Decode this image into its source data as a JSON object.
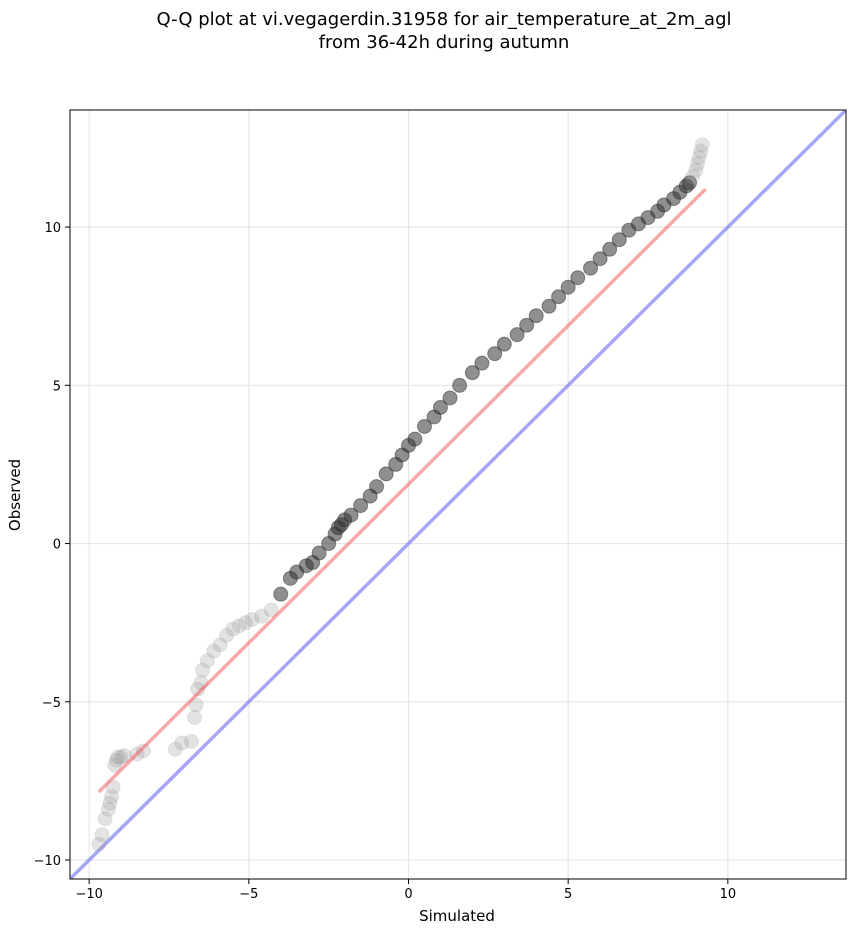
{
  "chart_data": {
    "type": "scatter",
    "title_lines": [
      "Q-Q plot at vi.vegagerdin.31958 for air_temperature_at_2m_agl",
      "from 36-42h during autumn"
    ],
    "xlabel": "Simulated",
    "ylabel": "Observed",
    "xlim": [
      -10.6,
      13.7
    ],
    "ylim": [
      -10.6,
      13.7
    ],
    "xticks": [
      -10,
      -5,
      0,
      5,
      10
    ],
    "yticks": [
      -10,
      -5,
      0,
      5,
      10
    ],
    "xtick_labels": [
      "−10",
      "−5",
      "0",
      "5",
      "10"
    ],
    "ytick_labels": [
      "−10",
      "−5",
      "0",
      "5",
      "10"
    ],
    "grid": true,
    "colors": {
      "points": "#333333",
      "fit_line": "#ef5350",
      "reference_line": "#6b6bf0",
      "grid": "#e6e6e6"
    },
    "series": [
      {
        "kind": "quantiles",
        "x": [
          -9.7,
          -9.6,
          -9.5,
          -9.4,
          -9.35,
          -9.3,
          -9.25,
          -9.2,
          -9.15,
          -9.1,
          -9.0,
          -8.9,
          -8.5,
          -8.3,
          -7.3,
          -7.1,
          -6.8,
          -6.7,
          -6.65,
          -6.6,
          -6.5,
          -6.45,
          -6.3,
          -6.1,
          -5.9,
          -5.7,
          -5.5,
          -5.3,
          -5.1,
          -4.9,
          -4.6,
          -4.3,
          -4.0,
          -3.7,
          -3.5,
          -3.2,
          -3.0,
          -2.8,
          -2.5,
          -2.3,
          -2.2,
          -2.1,
          -2.0,
          -1.8,
          -1.5,
          -1.2,
          -1.0,
          -0.7,
          -0.4,
          -0.2,
          0.0,
          0.2,
          0.5,
          0.8,
          1.0,
          1.3,
          1.6,
          2.0,
          2.3,
          2.7,
          3.0,
          3.4,
          3.7,
          4.0,
          4.4,
          4.7,
          5.0,
          5.3,
          5.7,
          6.0,
          6.3,
          6.6,
          6.9,
          7.2,
          7.5,
          7.8,
          8.0,
          8.3,
          8.5,
          8.7,
          8.8,
          8.9,
          9.0,
          9.05,
          9.1,
          9.15,
          9.2
        ],
        "y": [
          -9.5,
          -9.2,
          -8.7,
          -8.4,
          -8.2,
          -8.0,
          -7.7,
          -7.0,
          -6.85,
          -6.75,
          -6.75,
          -6.7,
          -6.65,
          -6.55,
          -6.5,
          -6.3,
          -6.25,
          -5.5,
          -5.1,
          -4.6,
          -4.4,
          -4.0,
          -3.7,
          -3.4,
          -3.2,
          -2.9,
          -2.7,
          -2.6,
          -2.5,
          -2.4,
          -2.3,
          -2.1,
          -1.6,
          -1.1,
          -0.9,
          -0.7,
          -0.6,
          -0.3,
          0.0,
          0.3,
          0.5,
          0.6,
          0.75,
          0.9,
          1.2,
          1.5,
          1.8,
          2.2,
          2.5,
          2.8,
          3.1,
          3.3,
          3.7,
          4.0,
          4.3,
          4.6,
          5.0,
          5.4,
          5.7,
          6.0,
          6.3,
          6.6,
          6.9,
          7.2,
          7.5,
          7.8,
          8.1,
          8.4,
          8.7,
          9.0,
          9.3,
          9.6,
          9.9,
          10.1,
          10.3,
          10.5,
          10.7,
          10.9,
          11.1,
          11.3,
          11.4,
          11.6,
          11.8,
          12.0,
          12.2,
          12.4,
          12.6
        ]
      },
      {
        "kind": "fit_line",
        "x": [
          -9.7,
          9.3
        ],
        "y": [
          -7.85,
          11.2
        ]
      },
      {
        "kind": "reference_line",
        "x": [
          -10.6,
          13.7
        ],
        "y": [
          -10.6,
          13.7
        ]
      }
    ]
  }
}
